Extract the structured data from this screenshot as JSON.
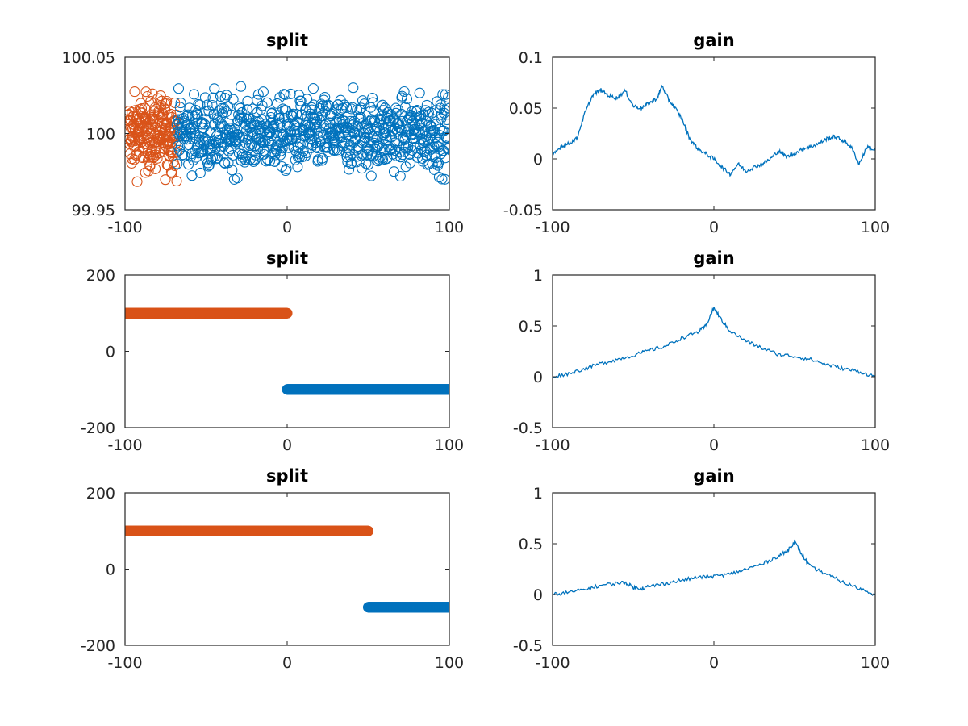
{
  "chart_data": [
    {
      "id": "split-1",
      "type": "scatter",
      "title": "split",
      "xlabel": "",
      "ylabel": "",
      "xlim": [
        -100,
        100
      ],
      "ylim": [
        99.95,
        100.05
      ],
      "xticks": [
        -100,
        0,
        100
      ],
      "xtick_labels": [
        "-100",
        "0",
        "100"
      ],
      "yticks": [
        99.95,
        100,
        100.05
      ],
      "ytick_labels": [
        "99.95",
        "100",
        "100.05"
      ],
      "marker": "open-circle",
      "series": [
        {
          "color": "#d95319",
          "x_range": [
            -98,
            -68
          ],
          "y_center": 100.0,
          "y_spread": 0.012,
          "count": 220
        },
        {
          "color": "#0072bd",
          "x_range": [
            -68,
            100
          ],
          "y_center": 100.0,
          "y_spread": 0.012,
          "count": 780
        }
      ]
    },
    {
      "id": "gain-1",
      "type": "line",
      "title": "gain",
      "xlabel": "",
      "ylabel": "",
      "xlim": [
        -100,
        100
      ],
      "ylim": [
        -0.05,
        0.1
      ],
      "xticks": [
        -100,
        0,
        100
      ],
      "xtick_labels": [
        "-100",
        "0",
        "100"
      ],
      "yticks": [
        -0.05,
        0,
        0.05,
        0.1
      ],
      "ytick_labels": [
        "-0.05",
        "0",
        "0.05",
        "0.1"
      ],
      "series": [
        {
          "color": "#0072bd",
          "x": [
            -100,
            -95,
            -90,
            -85,
            -80,
            -75,
            -70,
            -65,
            -60,
            -55,
            -50,
            -45,
            -40,
            -35,
            -32,
            -28,
            -24,
            -20,
            -15,
            -10,
            -5,
            0,
            5,
            10,
            15,
            20,
            25,
            30,
            35,
            40,
            45,
            50,
            55,
            60,
            65,
            70,
            75,
            80,
            85,
            90,
            95,
            100
          ],
          "y": [
            0.003,
            0.012,
            0.015,
            0.02,
            0.045,
            0.063,
            0.068,
            0.062,
            0.06,
            0.067,
            0.052,
            0.05,
            0.055,
            0.06,
            0.072,
            0.058,
            0.05,
            0.04,
            0.02,
            0.01,
            0.005,
            0.0,
            -0.008,
            -0.015,
            -0.005,
            -0.012,
            -0.008,
            -0.005,
            0.0,
            0.008,
            0.002,
            0.005,
            0.01,
            0.012,
            0.015,
            0.02,
            0.022,
            0.018,
            0.012,
            -0.005,
            0.012,
            0.008
          ]
        }
      ]
    },
    {
      "id": "split-2",
      "type": "scatter",
      "title": "split",
      "xlabel": "",
      "ylabel": "",
      "xlim": [
        -100,
        100
      ],
      "ylim": [
        -200,
        200
      ],
      "xticks": [
        -100,
        0,
        100
      ],
      "xtick_labels": [
        "-100",
        "0",
        "100"
      ],
      "yticks": [
        -200,
        0,
        200
      ],
      "ytick_labels": [
        "-200",
        "0",
        "200"
      ],
      "marker": "open-circle",
      "series": [
        {
          "color": "#d95319",
          "x_range": [
            -100,
            0
          ],
          "y_center": 100,
          "y_spread": 0,
          "count": 500
        },
        {
          "color": "#0072bd",
          "x_range": [
            0,
            100
          ],
          "y_center": -100,
          "y_spread": 0,
          "count": 500
        }
      ]
    },
    {
      "id": "gain-2",
      "type": "line",
      "title": "gain",
      "xlabel": "",
      "ylabel": "",
      "xlim": [
        -100,
        100
      ],
      "ylim": [
        -0.5,
        1
      ],
      "xticks": [
        -100,
        0,
        100
      ],
      "xtick_labels": [
        "-100",
        "0",
        "100"
      ],
      "yticks": [
        -0.5,
        0,
        0.5,
        1
      ],
      "ytick_labels": [
        "-0.5",
        "0",
        "0.5",
        "1"
      ],
      "series": [
        {
          "color": "#0072bd",
          "x": [
            -100,
            -90,
            -80,
            -70,
            -60,
            -50,
            -40,
            -30,
            -20,
            -10,
            -5,
            0,
            5,
            10,
            20,
            30,
            40,
            50,
            60,
            70,
            80,
            90,
            100
          ],
          "y": [
            0.0,
            0.03,
            0.08,
            0.13,
            0.17,
            0.21,
            0.26,
            0.3,
            0.38,
            0.44,
            0.5,
            0.68,
            0.55,
            0.45,
            0.35,
            0.28,
            0.22,
            0.2,
            0.17,
            0.12,
            0.08,
            0.05,
            0.0
          ]
        }
      ]
    },
    {
      "id": "split-3",
      "type": "scatter",
      "title": "split",
      "xlabel": "",
      "ylabel": "",
      "xlim": [
        -100,
        100
      ],
      "ylim": [
        -200,
        200
      ],
      "xticks": [
        -100,
        0,
        100
      ],
      "xtick_labels": [
        "-100",
        "0",
        "100"
      ],
      "yticks": [
        -200,
        0,
        200
      ],
      "ytick_labels": [
        "-200",
        "0",
        "200"
      ],
      "marker": "open-circle",
      "series": [
        {
          "color": "#d95319",
          "x_range": [
            -100,
            50
          ],
          "y_center": 100,
          "y_spread": 0,
          "count": 750
        },
        {
          "color": "#0072bd",
          "x_range": [
            50,
            100
          ],
          "y_center": -100,
          "y_spread": 0,
          "count": 250
        }
      ]
    },
    {
      "id": "gain-3",
      "type": "line",
      "title": "gain",
      "xlabel": "",
      "ylabel": "",
      "xlim": [
        -100,
        100
      ],
      "ylim": [
        -0.5,
        1
      ],
      "xticks": [
        -100,
        0,
        100
      ],
      "xtick_labels": [
        "-100",
        "0",
        "100"
      ],
      "yticks": [
        -0.5,
        0,
        0.5,
        1
      ],
      "ytick_labels": [
        "-0.5",
        "0",
        "0.5",
        "1"
      ],
      "series": [
        {
          "color": "#0072bd",
          "x": [
            -100,
            -90,
            -80,
            -70,
            -60,
            -55,
            -50,
            -45,
            -40,
            -30,
            -20,
            -10,
            0,
            10,
            20,
            30,
            40,
            45,
            50,
            55,
            60,
            70,
            80,
            90,
            100
          ],
          "y": [
            0.0,
            0.02,
            0.05,
            0.09,
            0.11,
            0.12,
            0.07,
            0.06,
            0.08,
            0.11,
            0.14,
            0.17,
            0.18,
            0.2,
            0.25,
            0.3,
            0.38,
            0.42,
            0.52,
            0.38,
            0.27,
            0.2,
            0.12,
            0.06,
            0.0
          ]
        }
      ]
    }
  ]
}
